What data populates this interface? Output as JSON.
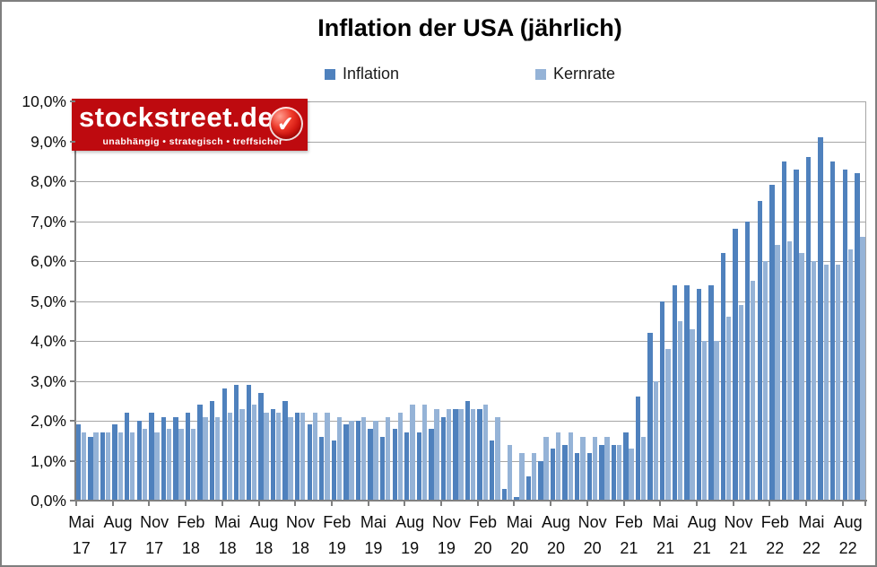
{
  "logo": {
    "text": "stockstreet.de",
    "tagline": "unabhängig • strategisch • treffsicher",
    "bg_color": "#BE0A0F",
    "text_color": "#FFFFFF"
  },
  "chart_data": {
    "type": "bar",
    "title": "Inflation der USA (jährlich)",
    "legend_position": "top",
    "grid": true,
    "y_axis": {
      "min": 0,
      "max": 10,
      "step": 1,
      "tick_labels": [
        "0,0%",
        "1,0%",
        "2,0%",
        "3,0%",
        "4,0%",
        "5,0%",
        "6,0%",
        "7,0%",
        "8,0%",
        "9,0%",
        "10,0%"
      ]
    },
    "x_axis": {
      "label_every_n_months": 3,
      "tick_labels": [
        {
          "month": "Mai",
          "year": "17"
        },
        {
          "month": "Aug",
          "year": "17"
        },
        {
          "month": "Nov",
          "year": "17"
        },
        {
          "month": "Feb",
          "year": "18"
        },
        {
          "month": "Mai",
          "year": "18"
        },
        {
          "month": "Aug",
          "year": "18"
        },
        {
          "month": "Nov",
          "year": "18"
        },
        {
          "month": "Feb",
          "year": "19"
        },
        {
          "month": "Mai",
          "year": "19"
        },
        {
          "month": "Aug",
          "year": "19"
        },
        {
          "month": "Nov",
          "year": "19"
        },
        {
          "month": "Feb",
          "year": "20"
        },
        {
          "month": "Mai",
          "year": "20"
        },
        {
          "month": "Aug",
          "year": "20"
        },
        {
          "month": "Nov",
          "year": "20"
        },
        {
          "month": "Feb",
          "year": "21"
        },
        {
          "month": "Mai",
          "year": "21"
        },
        {
          "month": "Aug",
          "year": "21"
        },
        {
          "month": "Nov",
          "year": "21"
        },
        {
          "month": "Feb",
          "year": "22"
        },
        {
          "month": "Mai",
          "year": "22"
        },
        {
          "month": "Aug",
          "year": "22"
        }
      ]
    },
    "categories": [
      "Mai 17",
      "Jun 17",
      "Jul 17",
      "Aug 17",
      "Sep 17",
      "Okt 17",
      "Nov 17",
      "Dez 17",
      "Jan 18",
      "Feb 18",
      "Mär 18",
      "Apr 18",
      "Mai 18",
      "Jun 18",
      "Jul 18",
      "Aug 18",
      "Sep 18",
      "Okt 18",
      "Nov 18",
      "Dez 18",
      "Jan 19",
      "Feb 19",
      "Mär 19",
      "Apr 19",
      "Mai 19",
      "Jun 19",
      "Jul 19",
      "Aug 19",
      "Sep 19",
      "Okt 19",
      "Nov 19",
      "Dez 19",
      "Jan 20",
      "Feb 20",
      "Mär 20",
      "Apr 20",
      "Mai 20",
      "Jun 20",
      "Jul 20",
      "Aug 20",
      "Sep 20",
      "Okt 20",
      "Nov 20",
      "Dez 20",
      "Jan 21",
      "Feb 21",
      "Mär 21",
      "Apr 21",
      "Mai 21",
      "Jun 21",
      "Jul 21",
      "Aug 21",
      "Sep 21",
      "Okt 21",
      "Nov 21",
      "Dez 21",
      "Jan 22",
      "Feb 22",
      "Mär 22",
      "Apr 22",
      "Mai 22",
      "Jun 22",
      "Jul 22",
      "Aug 22",
      "Sep 22"
    ],
    "series": [
      {
        "name": "Inflation",
        "color": "#4F81BD",
        "values": [
          1.9,
          1.6,
          1.7,
          1.9,
          2.2,
          2.0,
          2.2,
          2.1,
          2.1,
          2.2,
          2.4,
          2.5,
          2.8,
          2.9,
          2.9,
          2.7,
          2.3,
          2.5,
          2.2,
          1.9,
          1.6,
          1.5,
          1.9,
          2.0,
          1.8,
          1.6,
          1.8,
          1.7,
          1.7,
          1.8,
          2.1,
          2.3,
          2.5,
          2.3,
          1.5,
          0.3,
          0.1,
          0.6,
          1.0,
          1.3,
          1.4,
          1.2,
          1.2,
          1.4,
          1.4,
          1.7,
          2.6,
          4.2,
          5.0,
          5.4,
          5.4,
          5.3,
          5.4,
          6.2,
          6.8,
          7.0,
          7.5,
          7.9,
          8.5,
          8.3,
          8.6,
          9.1,
          8.5,
          8.3,
          8.2
        ]
      },
      {
        "name": "Kernrate",
        "color": "#95B3D7",
        "values": [
          1.7,
          1.7,
          1.7,
          1.7,
          1.7,
          1.8,
          1.7,
          1.8,
          1.8,
          1.8,
          2.1,
          2.1,
          2.2,
          2.3,
          2.4,
          2.2,
          2.2,
          2.1,
          2.2,
          2.2,
          2.2,
          2.1,
          2.0,
          2.1,
          2.0,
          2.1,
          2.2,
          2.4,
          2.4,
          2.3,
          2.3,
          2.3,
          2.3,
          2.4,
          2.1,
          1.4,
          1.2,
          1.2,
          1.6,
          1.7,
          1.7,
          1.6,
          1.6,
          1.6,
          1.4,
          1.3,
          1.6,
          3.0,
          3.8,
          4.5,
          4.3,
          4.0,
          4.0,
          4.6,
          4.9,
          5.5,
          6.0,
          6.4,
          6.5,
          6.2,
          6.0,
          5.9,
          5.9,
          6.3,
          6.6
        ]
      }
    ]
  }
}
